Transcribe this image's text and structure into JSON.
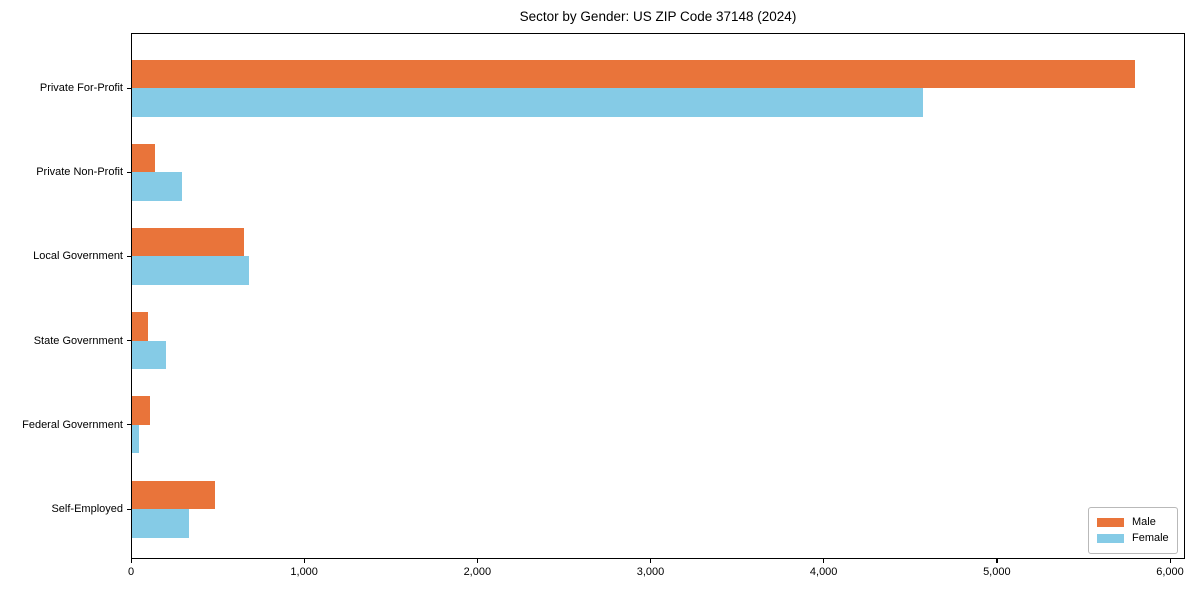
{
  "title": "Sector by Gender: US ZIP Code 37148 (2024)",
  "colors": {
    "male": "#e9743a",
    "female": "#85cbe6",
    "axis": "#000000",
    "legend_border": "#b9b9b9",
    "background": "#ffffff"
  },
  "chart_data": {
    "type": "bar",
    "orientation": "horizontal",
    "title": "Sector by Gender: US ZIP Code 37148 (2024)",
    "categories": [
      "Private For-Profit",
      "Private Non-Profit",
      "Local Government",
      "State Government",
      "Federal Government",
      "Self-Employed"
    ],
    "series": [
      {
        "name": "Male",
        "color": "#e9743a",
        "values": [
          5790,
          130,
          645,
          90,
          105,
          480
        ]
      },
      {
        "name": "Female",
        "color": "#85cbe6",
        "values": [
          4570,
          290,
          675,
          195,
          40,
          330
        ]
      }
    ],
    "xlabel": "",
    "ylabel": "",
    "xlim": [
      0,
      6000
    ],
    "x_ticks": [
      0,
      1000,
      2000,
      3000,
      4000,
      5000,
      6000
    ],
    "x_tick_labels": [
      "0",
      "1,000",
      "2,000",
      "3,000",
      "4,000",
      "5,000",
      "6,000"
    ],
    "grid": false,
    "legend_position": "lower right",
    "legend_items": [
      {
        "label": "Male",
        "color": "#e9743a"
      },
      {
        "label": "Female",
        "color": "#85cbe6"
      }
    ]
  }
}
